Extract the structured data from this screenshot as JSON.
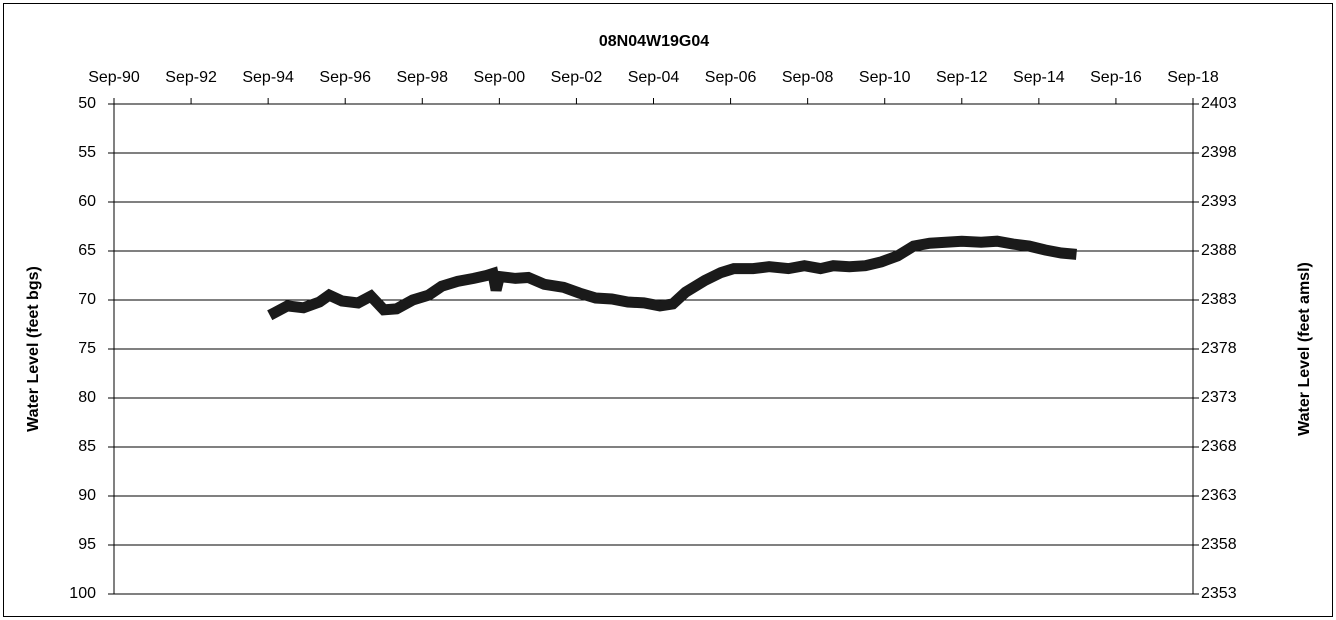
{
  "chart_data": {
    "type": "line",
    "title": "08N04W19G04",
    "ylabel": "Water Level (feet bgs)",
    "y2label": "Water Level (feet amsl)",
    "xlim": [
      "1990-09",
      "2018-09"
    ],
    "xticks": [
      {
        "value": "1990-09",
        "label": "Sep-90"
      },
      {
        "value": "1992-09",
        "label": "Sep-92"
      },
      {
        "value": "1994-09",
        "label": "Sep-94"
      },
      {
        "value": "1996-09",
        "label": "Sep-96"
      },
      {
        "value": "1998-09",
        "label": "Sep-98"
      },
      {
        "value": "2000-09",
        "label": "Sep-00"
      },
      {
        "value": "2002-09",
        "label": "Sep-02"
      },
      {
        "value": "2004-09",
        "label": "Sep-04"
      },
      {
        "value": "2006-09",
        "label": "Sep-06"
      },
      {
        "value": "2008-09",
        "label": "Sep-08"
      },
      {
        "value": "2010-09",
        "label": "Sep-10"
      },
      {
        "value": "2012-09",
        "label": "Sep-12"
      },
      {
        "value": "2014-09",
        "label": "Sep-14"
      },
      {
        "value": "2016-09",
        "label": "Sep-16"
      },
      {
        "value": "2018-09",
        "label": "Sep-18"
      }
    ],
    "ylim": [
      50,
      100
    ],
    "y_inverted": true,
    "yticks": [
      50,
      55,
      60,
      65,
      70,
      75,
      80,
      85,
      90,
      95,
      100
    ],
    "y2lim": [
      2403,
      2353
    ],
    "y2ticks": [
      2403,
      2398,
      2393,
      2388,
      2383,
      2378,
      2373,
      2368,
      2363,
      2358,
      2353
    ],
    "grid": true,
    "color": "#1a1a1a",
    "x": [
      "1994-11",
      "1995-03",
      "1995-08",
      "1996-01",
      "1996-04",
      "1996-08",
      "1997-01",
      "1997-05",
      "1997-09",
      "1998-01",
      "1998-06",
      "1998-11",
      "1999-03",
      "1999-08",
      "2000-01",
      "2000-05",
      "2000-07",
      "2000-08",
      "2000-09",
      "2001-02",
      "2001-06",
      "2001-11",
      "2002-05",
      "2002-10",
      "2003-03",
      "2003-08",
      "2004-01",
      "2004-06",
      "2004-11",
      "2005-03",
      "2005-07",
      "2006-01",
      "2006-06",
      "2006-10",
      "2007-04",
      "2007-09",
      "2008-03",
      "2008-08",
      "2009-01",
      "2009-05",
      "2009-10",
      "2010-03",
      "2010-08",
      "2011-01",
      "2011-06",
      "2011-11",
      "2012-04",
      "2012-09",
      "2013-03",
      "2013-08",
      "2014-01",
      "2014-06",
      "2014-11",
      "2015-04",
      "2015-07"
    ],
    "values": [
      71.3,
      70.6,
      70.8,
      70.2,
      69.5,
      70.1,
      70.3,
      69.6,
      71.0,
      70.9,
      70.0,
      69.5,
      68.6,
      68.1,
      67.8,
      67.5,
      67.3,
      69.0,
      67.6,
      67.8,
      67.7,
      68.4,
      68.7,
      69.3,
      69.8,
      69.9,
      70.2,
      70.3,
      70.6,
      70.4,
      69.2,
      68.0,
      67.2,
      66.8,
      66.8,
      66.6,
      66.8,
      66.5,
      66.8,
      66.5,
      66.6,
      66.5,
      66.1,
      65.5,
      64.5,
      64.2,
      64.1,
      64.0,
      64.1,
      64.0,
      64.3,
      64.5,
      64.9,
      65.2,
      65.3
    ]
  }
}
